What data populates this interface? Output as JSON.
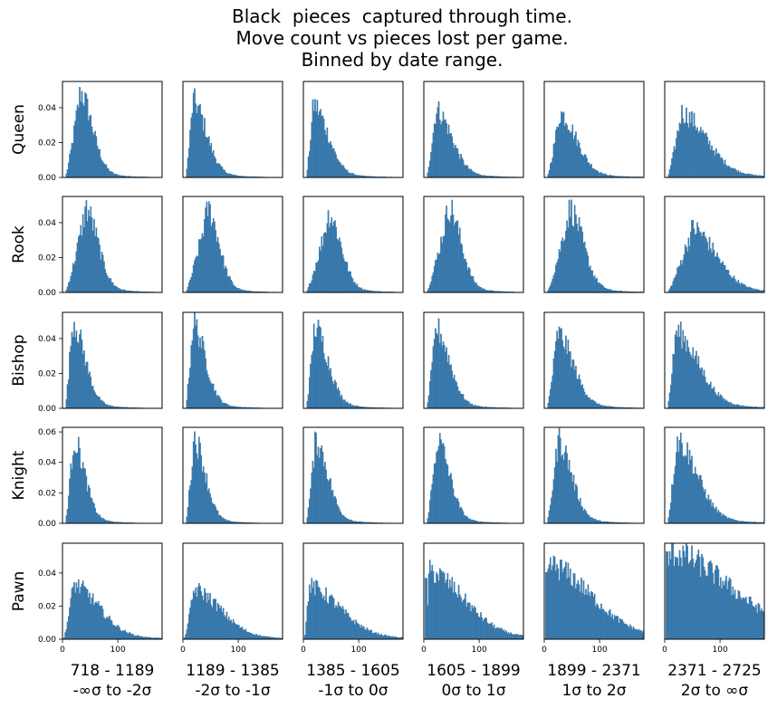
{
  "title_lines": [
    "Black  pieces  captured through time.",
    "Move count vs pieces lost per game.",
    "Binned by date range."
  ],
  "chart_data": {
    "type": "histogram-grid",
    "bar_color": "#3b7cb0",
    "rows": [
      "Queen",
      "Rook",
      "Bishop",
      "Knight",
      "Pawn"
    ],
    "columns": [
      {
        "range": "718 - 1189",
        "sigma": "-∞σ to -2σ"
      },
      {
        "range": "1189 - 1385",
        "sigma": "-2σ to -1σ"
      },
      {
        "range": "1385 - 1605",
        "sigma": "-1σ to 0σ"
      },
      {
        "range": "1605 - 1899",
        "sigma": "0σ to 1σ"
      },
      {
        "range": "1899 - 2371",
        "sigma": "1σ to 2σ"
      },
      {
        "range": "2371 - 2725",
        "sigma": "2σ to ∞σ"
      }
    ],
    "xlim": [
      0,
      180
    ],
    "x_ticks": [
      0,
      100
    ],
    "row_ylim": [
      [
        0,
        0.055
      ],
      [
        0,
        0.055
      ],
      [
        0,
        0.055
      ],
      [
        0,
        0.063
      ],
      [
        0,
        0.058
      ]
    ],
    "row_y_ticks": [
      [
        "0.00",
        "0.02",
        "0.04"
      ],
      [
        "0.00",
        "0.02",
        "0.04"
      ],
      [
        "0.00",
        "0.02",
        "0.04"
      ],
      [
        "0.00",
        "0.02",
        "0.04",
        "0.06"
      ],
      [
        "0.00",
        "0.02",
        "0.04"
      ]
    ],
    "distributions": [
      [
        {
          "start": 5,
          "mode": 32,
          "peak": 0.049,
          "tail": 22
        },
        {
          "start": 5,
          "mode": 18,
          "peak": 0.044,
          "tail": 24
        },
        {
          "start": 5,
          "mode": 18,
          "peak": 0.042,
          "tail": 26
        },
        {
          "start": 5,
          "mode": 22,
          "peak": 0.039,
          "tail": 28
        },
        {
          "start": 5,
          "mode": 28,
          "peak": 0.037,
          "tail": 30
        },
        {
          "start": 5,
          "mode": 30,
          "peak": 0.037,
          "tail": 45
        }
      ],
      [
        {
          "start": 5,
          "mode": 42,
          "peak": 0.048,
          "tail": 22
        },
        {
          "start": 5,
          "mode": 45,
          "peak": 0.048,
          "tail": 20
        },
        {
          "start": 5,
          "mode": 46,
          "peak": 0.045,
          "tail": 22
        },
        {
          "start": 5,
          "mode": 45,
          "peak": 0.049,
          "tail": 22
        },
        {
          "start": 5,
          "mode": 46,
          "peak": 0.048,
          "tail": 24
        },
        {
          "start": 5,
          "mode": 50,
          "peak": 0.037,
          "tail": 42
        }
      ],
      [
        {
          "start": 5,
          "mode": 18,
          "peak": 0.05,
          "tail": 22
        },
        {
          "start": 5,
          "mode": 18,
          "peak": 0.049,
          "tail": 22
        },
        {
          "start": 5,
          "mode": 20,
          "peak": 0.047,
          "tail": 24
        },
        {
          "start": 5,
          "mode": 22,
          "peak": 0.046,
          "tail": 24
        },
        {
          "start": 5,
          "mode": 24,
          "peak": 0.043,
          "tail": 28
        },
        {
          "start": 5,
          "mode": 20,
          "peak": 0.044,
          "tail": 40
        }
      ],
      [
        {
          "start": 5,
          "mode": 20,
          "peak": 0.055,
          "tail": 20
        },
        {
          "start": 5,
          "mode": 20,
          "peak": 0.056,
          "tail": 20
        },
        {
          "start": 5,
          "mode": 22,
          "peak": 0.055,
          "tail": 22
        },
        {
          "start": 5,
          "mode": 24,
          "peak": 0.055,
          "tail": 22
        },
        {
          "start": 5,
          "mode": 25,
          "peak": 0.055,
          "tail": 24
        },
        {
          "start": 5,
          "mode": 22,
          "peak": 0.055,
          "tail": 36
        }
      ],
      [
        {
          "start": 2,
          "mode": 20,
          "peak": 0.033,
          "tail": 45
        },
        {
          "start": 2,
          "mode": 20,
          "peak": 0.03,
          "tail": 48
        },
        {
          "start": 2,
          "mode": 10,
          "peak": 0.032,
          "tail": 55
        },
        {
          "start": 2,
          "mode": 10,
          "peak": 0.041,
          "tail": 62
        },
        {
          "start": 2,
          "mode": 8,
          "peak": 0.045,
          "tail": 75
        },
        {
          "start": 2,
          "mode": 8,
          "peak": 0.053,
          "tail": 110
        }
      ]
    ]
  }
}
